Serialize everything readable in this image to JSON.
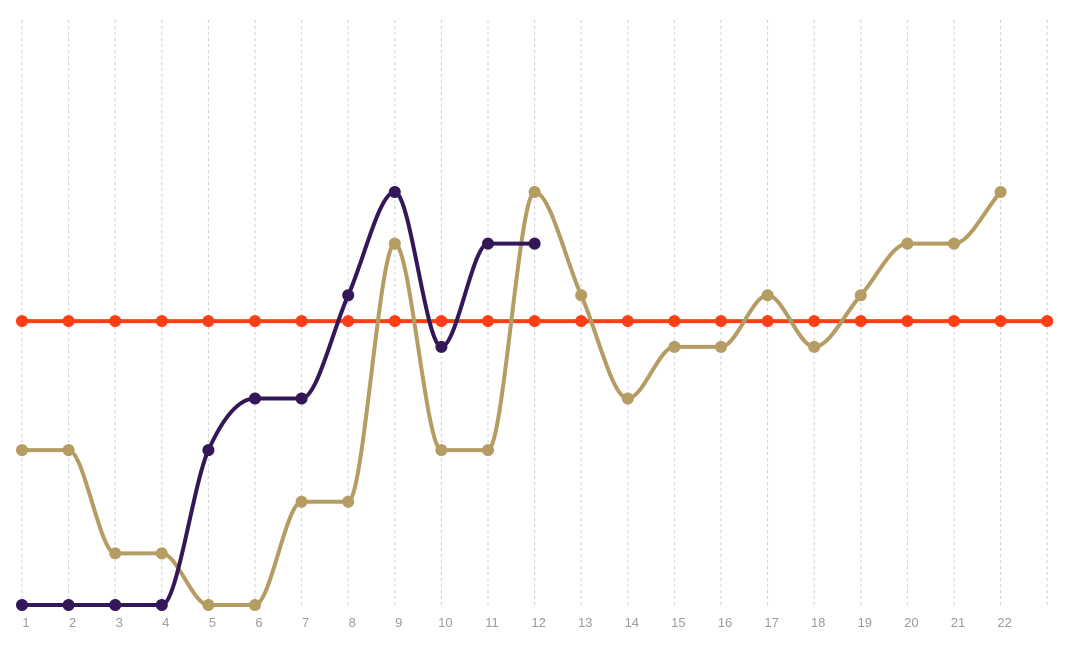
{
  "chart_data": {
    "type": "line",
    "title": "",
    "xlabel": "",
    "ylabel": "",
    "x": [
      1,
      2,
      3,
      4,
      5,
      6,
      7,
      8,
      9,
      10,
      11,
      12,
      13,
      14,
      15,
      16,
      17,
      18,
      19,
      20,
      21,
      22,
      23
    ],
    "tick_labels": [
      "1",
      "2",
      "3",
      "4",
      "5",
      "6",
      "7",
      "8",
      "9",
      "10",
      "11",
      "12",
      "13",
      "14",
      "15",
      "16",
      "17",
      "18",
      "19",
      "20",
      "21",
      "22",
      ""
    ],
    "ylim": [
      0,
      12
    ],
    "grid": "vertical dotted",
    "smooth": true,
    "series": [
      {
        "color": "#FF3D17",
        "values": [
          5.5,
          5.5,
          5.5,
          5.5,
          5.5,
          5.5,
          5.5,
          5.5,
          5.5,
          5.5,
          5.5,
          5.5,
          5.5,
          5.5,
          5.5,
          5.5,
          5.5,
          5.5,
          5.5,
          5.5,
          5.5,
          5.5,
          5.5
        ]
      },
      {
        "color": "#B59C62",
        "values": [
          3,
          3,
          1,
          1,
          0,
          0,
          2,
          2,
          7,
          3,
          3,
          8,
          6,
          4,
          5,
          5,
          6,
          5,
          6,
          7,
          7,
          8,
          null
        ]
      },
      {
        "color": "#341758",
        "values": [
          0,
          0,
          0,
          0,
          3,
          4,
          4,
          6,
          8,
          5,
          7,
          7,
          null,
          null,
          null,
          null,
          null,
          null,
          null,
          null,
          null,
          null,
          null
        ]
      }
    ]
  }
}
